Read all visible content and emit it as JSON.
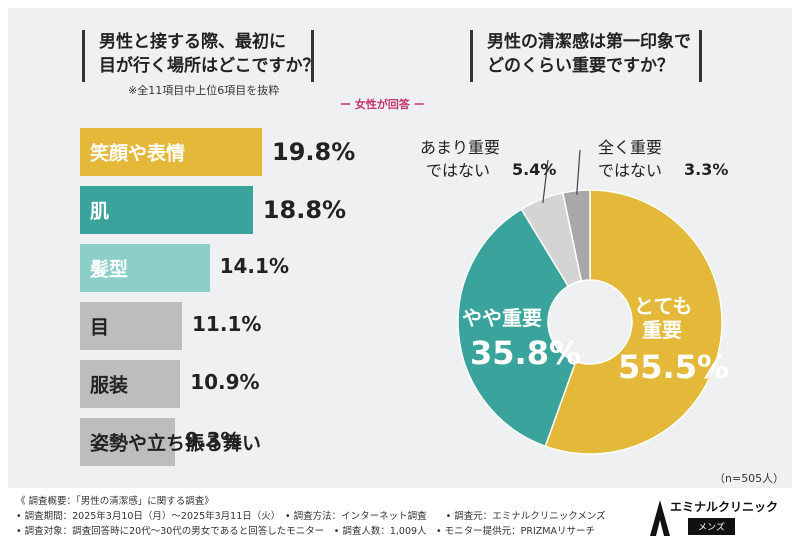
{
  "left": {
    "question_lines": [
      "男性と接する際、最初に",
      "目が行く場所はどこですか？"
    ],
    "note": "※全11項目中上位6項目を抜粋",
    "respondent": "ー 女性が回答 ー"
  },
  "right": {
    "question_lines": [
      "男性の清潔感は第一印象で",
      "どのくらい重要ですか？"
    ],
    "n": "（n=505人）"
  },
  "chart_data": [
    {
      "type": "bar",
      "orientation": "horizontal",
      "categories": [
        "笑顔や表情",
        "肌",
        "髪型",
        "目",
        "服装",
        "姿勢や立ち振る舞い"
      ],
      "values": [
        19.8,
        18.8,
        14.1,
        11.1,
        10.9,
        9.3
      ],
      "value_labels": [
        "19.8%",
        "18.8%",
        "14.1%",
        "11.1%",
        "10.9%",
        "9.3%"
      ],
      "unit": "%",
      "colors": [
        "#e4b93a",
        "#3aa39b",
        "#8ccfc8",
        "#bdbdbd",
        "#bdbdbd",
        "#bdbdbd"
      ]
    },
    {
      "type": "pie",
      "slices": [
        {
          "label": "とても重要",
          "value": 55.5,
          "value_label": "55.5%",
          "color": "#e4b93a"
        },
        {
          "label": "やや重要",
          "value": 35.8,
          "value_label": "35.8%",
          "color": "#3aa39b"
        },
        {
          "label": "あまり重要ではない",
          "value": 5.4,
          "value_label": "5.4%",
          "color": "#d4d4d4"
        },
        {
          "label": "全く重要ではない",
          "value": 3.3,
          "value_label": "3.3%",
          "color": "#a8a8a8"
        }
      ],
      "outside_label_lines": {
        "あまり重要ではない": [
          "あまり重要",
          "ではない"
        ],
        "全く重要ではない": [
          "全く重要",
          "ではない"
        ]
      },
      "inside_label_lines": {
        "とても重要": [
          "とても",
          "重要"
        ],
        "やや重要": [
          "やや重要"
        ]
      }
    }
  ],
  "footer": {
    "lines": [
      "《 調査概要：「男性の清潔感」に関する調査》",
      "• 調査期間：2025年3月10日（月）～2025年3月11日（火）　• 調査方法：インターネット調査　　• 調査元：エミナルクリニックメンズ",
      "• 調査対象：調査回答時に20代～30代の男女であると回答したモニター　• 調査人数：1,009人　• モニター提供元：PRIZMAリサーチ"
    ]
  },
  "logo": {
    "name": "エミナルクリニック",
    "sub": "メンズ"
  }
}
